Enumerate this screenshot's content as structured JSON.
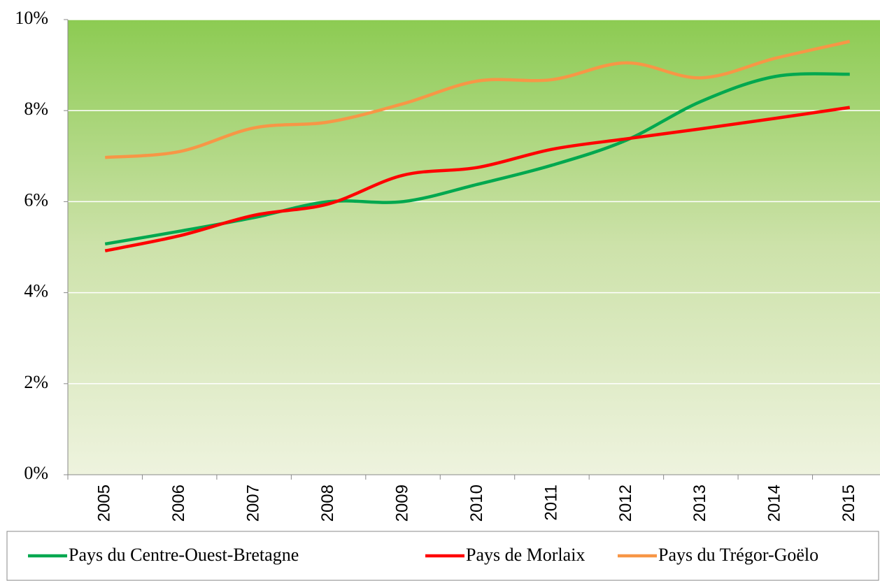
{
  "chart_data": {
    "type": "line",
    "categories": [
      "2005",
      "2006",
      "2007",
      "2008",
      "2009",
      "2010",
      "2011",
      "2012",
      "2013",
      "2014",
      "2015"
    ],
    "series": [
      {
        "name": "Pays du Centre-Ouest-Bretagne",
        "color": "#00a84f",
        "values": [
          5.07,
          5.35,
          5.65,
          6.0,
          6.0,
          6.38,
          6.8,
          7.35,
          8.2,
          8.75,
          8.8
        ]
      },
      {
        "name": "Pays de Morlaix",
        "color": "#ff0000",
        "values": [
          4.92,
          5.25,
          5.7,
          5.95,
          6.58,
          6.75,
          7.15,
          7.38,
          7.6,
          7.83,
          8.07
        ]
      },
      {
        "name": "Pays du Trégor-Goëlo",
        "color": "#f79646",
        "values": [
          6.97,
          7.1,
          7.62,
          7.75,
          8.15,
          8.65,
          8.68,
          9.05,
          8.72,
          9.15,
          9.52
        ]
      }
    ],
    "ylim": [
      0,
      10
    ],
    "yticks": [
      {
        "value": 0,
        "label": "0%"
      },
      {
        "value": 2,
        "label": "2%"
      },
      {
        "value": 4,
        "label": "4%"
      },
      {
        "value": 6,
        "label": "6%"
      },
      {
        "value": 8,
        "label": "8%"
      },
      {
        "value": 10,
        "label": "10%"
      }
    ],
    "grid": true,
    "legend": "bottom"
  }
}
